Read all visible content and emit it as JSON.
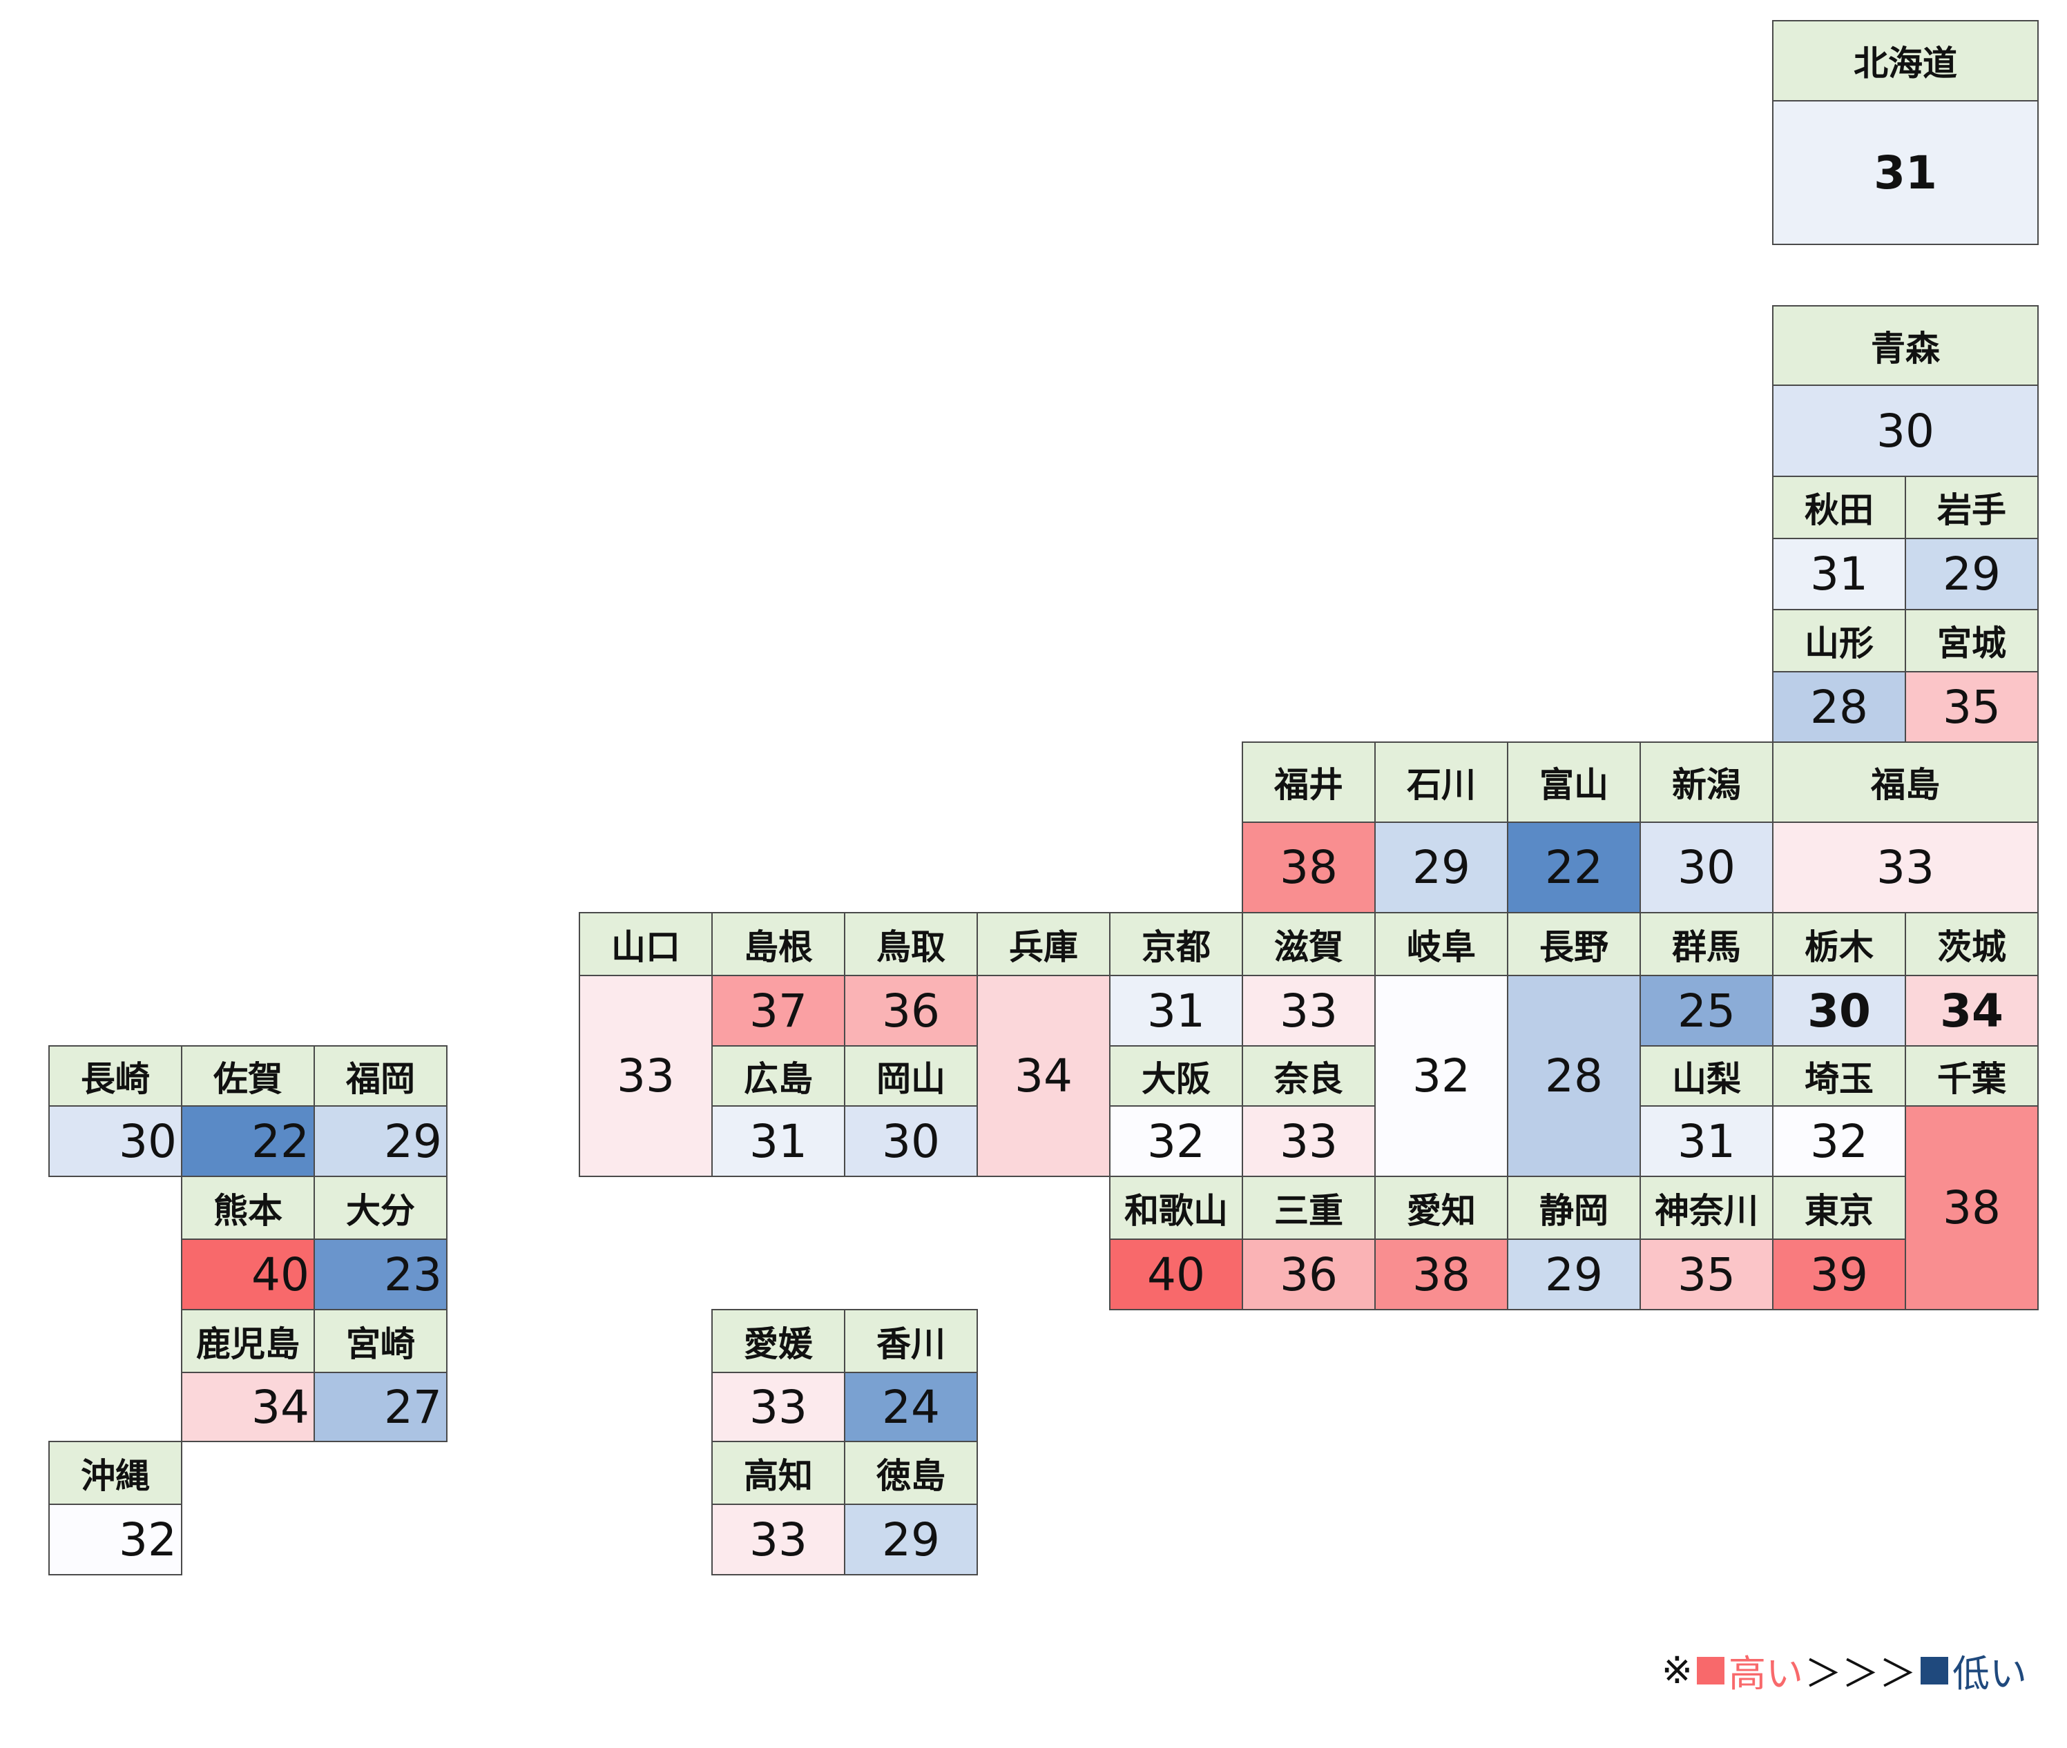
{
  "colors": {
    "name_bg": "#e3efda",
    "border": "#4a4a4a",
    "high": "#f8696b",
    "low": "#5a8ac6",
    "neutral": "#fcfcff",
    "scale_min": 22,
    "scale_mid": 32,
    "scale_max": 40
  },
  "prefectures": [
    {
      "name": "北海道",
      "value": 31
    },
    {
      "name": "青森",
      "value": 30
    },
    {
      "name": "秋田",
      "value": 31
    },
    {
      "name": "岩手",
      "value": 29
    },
    {
      "name": "山形",
      "value": 28
    },
    {
      "name": "宮城",
      "value": 35
    },
    {
      "name": "福井",
      "value": 38
    },
    {
      "name": "石川",
      "value": 29
    },
    {
      "name": "富山",
      "value": 22
    },
    {
      "name": "新潟",
      "value": 30
    },
    {
      "name": "福島",
      "value": 33
    },
    {
      "name": "山口",
      "value": 33
    },
    {
      "name": "島根",
      "value": 37
    },
    {
      "name": "鳥取",
      "value": 36
    },
    {
      "name": "兵庫",
      "value": 34
    },
    {
      "name": "京都",
      "value": 31
    },
    {
      "name": "滋賀",
      "value": 33
    },
    {
      "name": "岐阜",
      "value": 32
    },
    {
      "name": "長野",
      "value": 28
    },
    {
      "name": "群馬",
      "value": 25
    },
    {
      "name": "栃木",
      "value": 30
    },
    {
      "name": "茨城",
      "value": 34
    },
    {
      "name": "広島",
      "value": 31
    },
    {
      "name": "岡山",
      "value": 30
    },
    {
      "name": "大阪",
      "value": 32
    },
    {
      "name": "奈良",
      "value": 33
    },
    {
      "name": "山梨",
      "value": 31
    },
    {
      "name": "埼玉",
      "value": 32
    },
    {
      "name": "千葉",
      "value": 38
    },
    {
      "name": "和歌山",
      "value": 40
    },
    {
      "name": "三重",
      "value": 36
    },
    {
      "name": "愛知",
      "value": 38
    },
    {
      "name": "静岡",
      "value": 29
    },
    {
      "name": "神奈川",
      "value": 35
    },
    {
      "name": "東京",
      "value": 39
    },
    {
      "name": "長崎",
      "value": 30
    },
    {
      "name": "佐賀",
      "value": 22
    },
    {
      "name": "福岡",
      "value": 29
    },
    {
      "name": "熊本",
      "value": 40
    },
    {
      "name": "大分",
      "value": 23
    },
    {
      "name": "鹿児島",
      "value": 34
    },
    {
      "name": "宮崎",
      "value": 27
    },
    {
      "name": "沖縄",
      "value": 32
    },
    {
      "name": "愛媛",
      "value": 33
    },
    {
      "name": "香川",
      "value": 24
    },
    {
      "name": "高知",
      "value": 33
    },
    {
      "name": "徳島",
      "value": 29
    }
  ],
  "legend": {
    "prefix": "※",
    "high_label": "高い",
    "arrows": "＞＞＞",
    "low_label": "低い",
    "high_color": "#f8696b",
    "low_color": "#1f497d"
  }
}
